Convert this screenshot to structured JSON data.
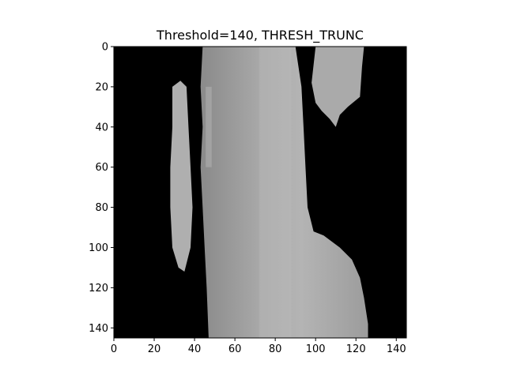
{
  "chart_data": {
    "type": "heatmap",
    "title": "Threshold=140, THRESH_TRUNC",
    "xlabel": "",
    "ylabel": "",
    "xlim": [
      0,
      145
    ],
    "ylim": [
      145,
      0
    ],
    "xticks": [
      0,
      20,
      40,
      60,
      80,
      100,
      120,
      140
    ],
    "yticks": [
      0,
      20,
      40,
      60,
      80,
      100,
      120,
      140
    ],
    "grid": false,
    "colormap": "gray",
    "background_color": "#000000",
    "regions": [
      {
        "name": "left-strip",
        "intensity": 175,
        "polygon": [
          [
            29,
            20
          ],
          [
            33,
            17
          ],
          [
            36,
            20
          ],
          [
            37,
            40
          ],
          [
            38,
            60
          ],
          [
            39,
            80
          ],
          [
            38,
            100
          ],
          [
            35,
            112
          ],
          [
            32,
            110
          ],
          [
            29,
            100
          ],
          [
            28,
            80
          ],
          [
            28,
            60
          ],
          [
            29,
            40
          ]
        ]
      },
      {
        "name": "central-band",
        "intensity": 165,
        "polygon": [
          [
            44,
            0
          ],
          [
            90,
            0
          ],
          [
            93,
            20
          ],
          [
            94,
            40
          ],
          [
            95,
            60
          ],
          [
            96,
            80
          ],
          [
            99,
            92
          ],
          [
            104,
            94
          ],
          [
            112,
            100
          ],
          [
            118,
            106
          ],
          [
            122,
            115
          ],
          [
            124,
            125
          ],
          [
            126,
            138
          ],
          [
            126,
            145
          ],
          [
            47,
            145
          ],
          [
            46,
            120
          ],
          [
            45,
            100
          ],
          [
            44,
            80
          ],
          [
            43,
            60
          ],
          [
            44,
            40
          ],
          [
            43,
            20
          ]
        ]
      },
      {
        "name": "right-patch",
        "intensity": 170,
        "polygon": [
          [
            100,
            0
          ],
          [
            124,
            0
          ],
          [
            123,
            10
          ],
          [
            122,
            25
          ],
          [
            116,
            30
          ],
          [
            112,
            34
          ],
          [
            110,
            40
          ],
          [
            107,
            36
          ],
          [
            103,
            32
          ],
          [
            100,
            28
          ],
          [
            98,
            18
          ]
        ]
      }
    ],
    "highlights": [
      {
        "x": 80,
        "y_top": 0,
        "y_bottom": 145,
        "width": 16,
        "intensity": 190
      },
      {
        "x": 47,
        "y_top": 20,
        "y_bottom": 60,
        "width": 3,
        "intensity": 200
      }
    ]
  }
}
